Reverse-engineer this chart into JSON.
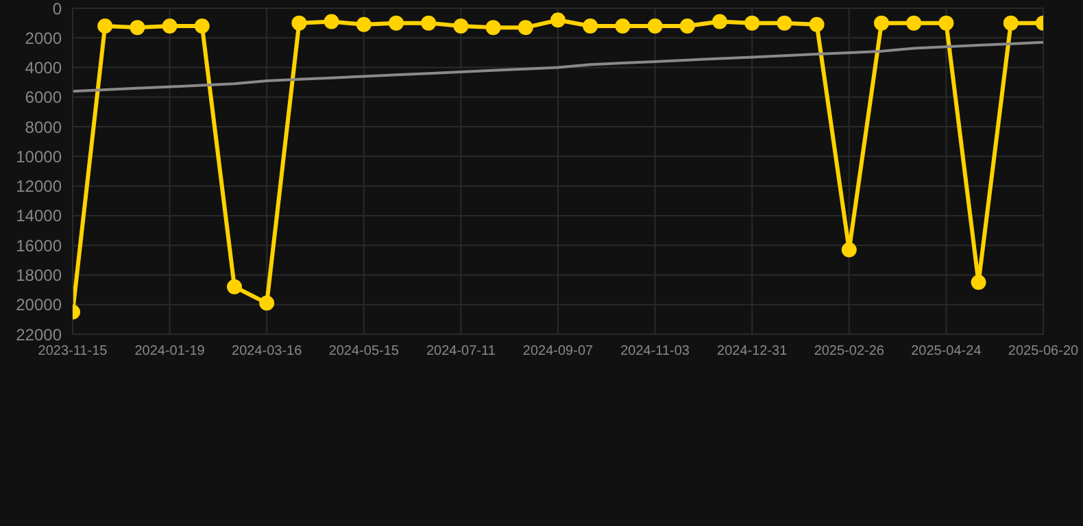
{
  "chart_data": {
    "type": "line",
    "categories": [
      "2023-11-15",
      null,
      null,
      "2024-01-19",
      null,
      null,
      "2024-03-16",
      null,
      null,
      "2024-05-15",
      null,
      null,
      "2024-07-11",
      null,
      null,
      "2024-09-07",
      null,
      null,
      "2024-11-03",
      null,
      null,
      "2024-12-31",
      null,
      null,
      "2025-02-26",
      null,
      null,
      "2025-04-24",
      null,
      null,
      "2025-06-20"
    ],
    "series": [
      {
        "color": "#ffd200",
        "marker": "circle",
        "values": [
          20500,
          1200,
          1300,
          1200,
          1200,
          18800,
          19900,
          1000,
          900,
          1100,
          1000,
          1000,
          1200,
          1300,
          1300,
          800,
          1200,
          1200,
          1200,
          1200,
          900,
          1000,
          1000,
          1100,
          16300,
          1000,
          1000,
          1000,
          18500,
          1000,
          1000
        ]
      },
      {
        "type": "line",
        "color": "#8a8a8a",
        "marker": "none",
        "values": [
          5600,
          5500,
          5400,
          5300,
          5200,
          5100,
          4900,
          4800,
          4700,
          4600,
          4500,
          4400,
          4300,
          4200,
          4100,
          4000,
          3800,
          3700,
          3600,
          3500,
          3400,
          3300,
          3200,
          3100,
          3000,
          2900,
          2700,
          2600,
          2500,
          2400,
          2300
        ]
      }
    ],
    "ylim": [
      22000,
      0
    ],
    "yticks": [
      0,
      2000,
      4000,
      6000,
      8000,
      10000,
      12000,
      14000,
      16000,
      18000,
      20000,
      22000
    ],
    "grid": true
  }
}
